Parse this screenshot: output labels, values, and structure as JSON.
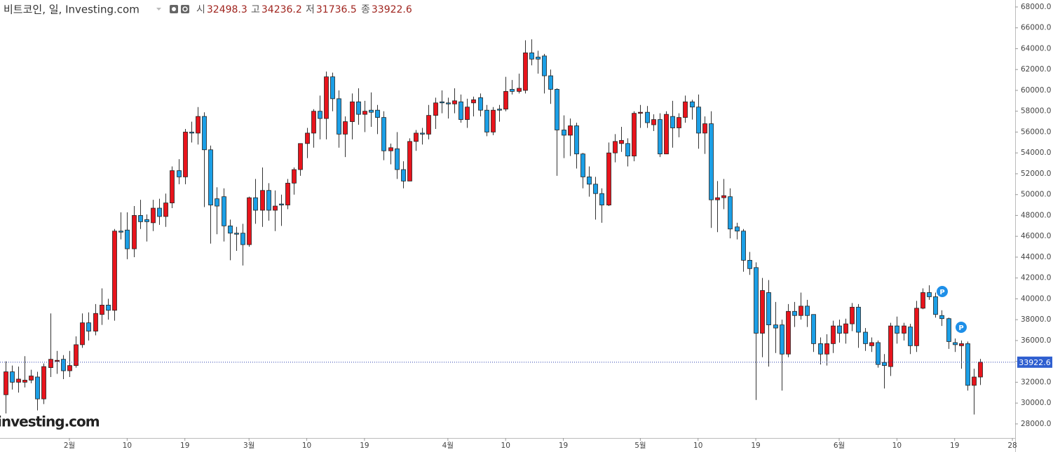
{
  "chart_data": {
    "type": "candlestick",
    "title": "비트코인, 일, Investing.com",
    "header_labels": [
      "시",
      "고",
      "저",
      "종"
    ],
    "markers": [
      "P",
      "P"
    ],
    "watermark": "investing.com",
    "up_color": "#e8141c",
    "down_color": "#1b9fe6",
    "x": [
      1,
      2,
      3,
      4,
      5,
      6,
      7,
      8,
      9,
      10,
      11,
      12,
      13,
      14,
      15,
      16,
      17,
      18,
      19,
      20,
      21,
      22,
      23,
      24,
      25,
      26,
      27,
      28,
      29,
      30,
      31,
      32,
      33,
      34,
      35,
      36,
      37,
      38,
      39,
      40,
      41,
      42,
      43,
      44,
      45,
      46,
      47,
      48,
      49,
      50,
      51,
      52,
      53,
      54,
      55,
      56,
      57,
      58,
      59,
      60,
      61,
      62,
      63,
      64,
      65,
      66,
      67,
      68,
      69,
      70,
      71,
      72,
      73,
      74,
      75,
      76,
      77,
      78,
      79,
      80,
      81,
      82,
      83,
      84,
      85,
      86,
      87,
      88,
      89,
      90,
      91,
      92,
      93,
      94,
      95,
      96,
      97,
      98,
      99,
      100,
      101,
      102,
      103,
      104,
      105,
      106,
      107,
      108,
      109,
      110,
      111,
      112,
      113,
      114,
      115,
      116,
      117,
      118,
      119,
      120,
      121,
      122,
      123,
      124,
      125,
      126,
      127,
      128,
      129,
      130,
      131,
      132,
      133,
      134,
      135,
      136,
      137,
      138,
      139,
      140,
      141,
      142,
      143,
      144,
      145,
      146,
      147,
      148,
      149,
      150,
      151,
      152,
      153
    ],
    "open": [
      30800,
      33000,
      32000,
      32000,
      32200,
      32500,
      30400,
      33400,
      34000,
      34200,
      33100,
      33600,
      35600,
      37700,
      36900,
      38500,
      39400,
      38900,
      46500,
      46600,
      44800,
      48000,
      47600,
      47300,
      48700,
      47900,
      49200,
      52300,
      51700,
      56000,
      55900,
      57500,
      54300,
      49600,
      49800,
      47000,
      46300,
      46300,
      45200,
      49700,
      48500,
      50400,
      48500,
      49100,
      49000,
      51100,
      52400,
      54900,
      55900,
      58000,
      57300,
      61300,
      59200,
      55800,
      57000,
      58900,
      57700,
      58100,
      58100,
      57400,
      54200,
      54400,
      52400,
      51300,
      55100,
      55900,
      55800,
      57600,
      58900,
      58800,
      58700,
      58900,
      57200,
      58800,
      59300,
      58100,
      56000,
      58200,
      58200,
      60100,
      59900,
      60000,
      63600,
      63200,
      63300,
      61400,
      60100,
      56200,
      55700,
      56600,
      53900,
      51700,
      51000,
      50100,
      49000,
      54000,
      54900,
      54900,
      53700,
      57800,
      57900,
      56700,
      57200,
      53900,
      57500,
      56400,
      57400,
      58900,
      58400,
      55900,
      56800,
      49500,
      49700,
      49800,
      46900,
      46500,
      43700,
      43000,
      36700,
      40600,
      37500,
      37500,
      34700,
      38800,
      38400,
      39300,
      38500,
      35700,
      34700,
      35700,
      37400,
      36700,
      37600,
      39200,
      36800,
      35500,
      35800,
      33900,
      33500,
      37400,
      36700,
      37300,
      35500,
      39100,
      40600,
      40200,
      38400,
      38100,
      35800,
      35500,
      35700,
      31700,
      32498.3
    ],
    "high": [
      34000,
      33600,
      33500,
      34500,
      33200,
      33000,
      33800,
      38600,
      35000,
      34600,
      35000,
      36400,
      38600,
      38700,
      39500,
      41000,
      40000,
      46700,
      48300,
      48300,
      48900,
      49500,
      48100,
      49500,
      49600,
      50100,
      52700,
      53400,
      56300,
      57000,
      58400,
      57900,
      54700,
      50700,
      50600,
      47600,
      46900,
      47200,
      49800,
      51500,
      52600,
      51100,
      50400,
      50000,
      51500,
      52600,
      54900,
      56400,
      58200,
      59500,
      61800,
      61700,
      60000,
      57500,
      59700,
      60200,
      59000,
      59800,
      58600,
      58000,
      54900,
      56000,
      53200,
      55400,
      56200,
      56400,
      58600,
      59300,
      60000,
      59300,
      60200,
      59600,
      59200,
      59400,
      59700,
      58600,
      58400,
      58600,
      61300,
      61000,
      61600,
      64800,
      64900,
      63800,
      63500,
      62000,
      60200,
      57600,
      57300,
      56900,
      54000,
      52700,
      51700,
      50600,
      55000,
      55800,
      56500,
      55400,
      58000,
      58600,
      58500,
      57700,
      57800,
      58000,
      59000,
      57800,
      59500,
      59100,
      59600,
      57500,
      58000,
      51300,
      51500,
      50600,
      47300,
      46700,
      44500,
      43500,
      42000,
      41800,
      39700,
      38000,
      39500,
      39700,
      40600,
      39900,
      38500,
      36300,
      36600,
      37900,
      38000,
      38100,
      39600,
      39500,
      37200,
      36300,
      36000,
      34700,
      37700,
      38300,
      37700,
      37600,
      39800,
      41000,
      41300,
      40600,
      38900,
      38200,
      36200,
      36000,
      35900,
      33300,
      34236.2
    ],
    "low": [
      29000,
      31300,
      31000,
      31500,
      31900,
      29300,
      29900,
      32500,
      32800,
      32300,
      32500,
      33400,
      35300,
      36000,
      36500,
      37500,
      38000,
      37900,
      45700,
      43800,
      44000,
      46700,
      45500,
      46500,
      47100,
      46900,
      48700,
      51000,
      51000,
      55000,
      54800,
      48800,
      45300,
      46200,
      45500,
      43700,
      44600,
      43200,
      45000,
      47200,
      46900,
      47500,
      46500,
      47000,
      48600,
      50000,
      51800,
      53500,
      54500,
      55300,
      55300,
      58000,
      54500,
      53600,
      55300,
      56700,
      56000,
      56500,
      55800,
      53300,
      52900,
      51500,
      50600,
      51300,
      54200,
      54800,
      55300,
      56300,
      57800,
      57300,
      57800,
      56900,
      56400,
      57500,
      57500,
      55600,
      55700,
      57000,
      58000,
      59600,
      59700,
      59700,
      62400,
      61600,
      59700,
      58700,
      51800,
      53500,
      53700,
      52500,
      50600,
      49800,
      47600,
      47300,
      48900,
      53100,
      54100,
      52700,
      53200,
      56400,
      56400,
      56100,
      53600,
      53900,
      54500,
      55500,
      56900,
      57200,
      54400,
      53900,
      46800,
      46400,
      48600,
      45800,
      45700,
      42600,
      42300,
      30300,
      34400,
      33500,
      34800,
      31200,
      34400,
      37300,
      38000,
      37300,
      34900,
      33700,
      33600,
      34800,
      35800,
      35700,
      36900,
      35300,
      35000,
      34900,
      33400,
      31400,
      32600,
      35700,
      36000,
      34700,
      34900,
      39000,
      39900,
      38200,
      37400,
      35200,
      34900,
      33300,
      31200,
      28900,
      31736.5
    ],
    "close": [
      33000,
      32000,
      32300,
      32200,
      32600,
      30400,
      33500,
      34200,
      34100,
      33100,
      33600,
      35600,
      37700,
      36900,
      38600,
      39400,
      38900,
      46500,
      46400,
      44800,
      48000,
      47400,
      47400,
      48700,
      47900,
      49200,
      52300,
      51700,
      56000,
      55900,
      57500,
      54300,
      49000,
      48900,
      47000,
      46300,
      46200,
      45200,
      49700,
      48500,
      50400,
      48500,
      48900,
      49000,
      51100,
      52400,
      54900,
      55900,
      58000,
      57300,
      61300,
      59200,
      55800,
      57000,
      58900,
      57700,
      58000,
      57900,
      57400,
      54200,
      54500,
      52400,
      51300,
      55100,
      55900,
      55800,
      57600,
      58800,
      58800,
      58700,
      59000,
      57200,
      58400,
      59100,
      58100,
      56000,
      58100,
      58100,
      59900,
      59900,
      60200,
      63600,
      63000,
      63000,
      61400,
      60100,
      56200,
      55700,
      56600,
      53900,
      51700,
      51000,
      50100,
      49000,
      54000,
      55100,
      55200,
      53700,
      57800,
      57900,
      56900,
      57200,
      53900,
      57700,
      56400,
      57400,
      58900,
      58400,
      55900,
      56800,
      49500,
      49700,
      49900,
      46700,
      46500,
      43700,
      42900,
      36700,
      40800,
      37500,
      37200,
      34700,
      38800,
      38400,
      39300,
      38400,
      35700,
      34700,
      35700,
      37400,
      36700,
      37600,
      39200,
      36800,
      35700,
      35800,
      33700,
      33600,
      37400,
      36700,
      37400,
      35500,
      39100,
      40600,
      40200,
      38500,
      38100,
      35900,
      35600,
      35700,
      31700,
      32500,
      33922.6
    ],
    "xlim": [
      0.18,
      158.43
    ],
    "xticks": [
      {
        "value": 11,
        "label": "2월"
      },
      {
        "value": 20,
        "label": "10"
      },
      {
        "value": 29,
        "label": "19"
      },
      {
        "value": 39,
        "label": "3월"
      },
      {
        "value": 48,
        "label": "10"
      },
      {
        "value": 57,
        "label": "19"
      },
      {
        "value": 70,
        "label": "4월"
      },
      {
        "value": 79,
        "label": "10"
      },
      {
        "value": 88,
        "label": "19"
      },
      {
        "value": 100,
        "label": "5월"
      },
      {
        "value": 109,
        "label": "10"
      },
      {
        "value": 118,
        "label": "19"
      },
      {
        "value": 131,
        "label": "6월"
      },
      {
        "value": 140,
        "label": "10"
      },
      {
        "value": 149,
        "label": "19"
      },
      {
        "value": 158,
        "label": "28"
      }
    ],
    "ylim": [
      26650,
      68670
    ],
    "yticks": [
      {
        "value": 28000,
        "label": "28000.0"
      },
      {
        "value": 30000,
        "label": "30000.0"
      },
      {
        "value": 32000,
        "label": "32000.0"
      },
      {
        "value": 34000,
        "label": "34000.0"
      },
      {
        "value": 36000,
        "label": "36000.0"
      },
      {
        "value": 38000,
        "label": "38000.0"
      },
      {
        "value": 40000,
        "label": "40000.0"
      },
      {
        "value": 42000,
        "label": "42000.0"
      },
      {
        "value": 44000,
        "label": "44000.0"
      },
      {
        "value": 46000,
        "label": "46000.0"
      },
      {
        "value": 48000,
        "label": "48000.0"
      },
      {
        "value": 50000,
        "label": "50000.0"
      },
      {
        "value": 52000,
        "label": "52000.0"
      },
      {
        "value": 54000,
        "label": "54000.0"
      },
      {
        "value": 56000,
        "label": "56000.0"
      },
      {
        "value": 58000,
        "label": "58000.0"
      },
      {
        "value": 60000,
        "label": "60000.0"
      },
      {
        "value": 62000,
        "label": "62000.0"
      },
      {
        "value": 64000,
        "label": "64000.0"
      },
      {
        "value": 66000,
        "label": "66000.0"
      },
      {
        "value": 68000,
        "label": "68000.0"
      }
    ]
  }
}
